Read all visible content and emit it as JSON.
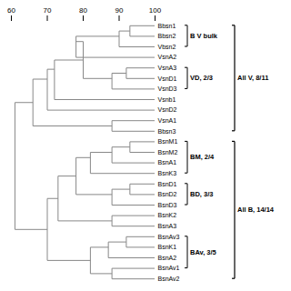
{
  "chart_data": {
    "type": "dendrogram",
    "categories": [
      "Bbsn1",
      "Bbsn2",
      "Vbsn2",
      "VsnA2",
      "VsnA3",
      "VsnD1",
      "VsnD3",
      "Vsnb1",
      "VsnD2",
      "VsnA1",
      "Bbsn3",
      "BsnM1",
      "BsnM2",
      "BsnA1",
      "BsnK3",
      "BsnD1",
      "BsnD2",
      "BsnD3",
      "BsnK2",
      "BsnA3",
      "BsnAv3",
      "BsnK1",
      "BsnA2",
      "BsnAv1",
      "BsnAv2"
    ],
    "color": "#888888",
    "xlim": [
      60,
      100
    ],
    "xticks": [
      60,
      70,
      80,
      90,
      100
    ],
    "nodes": [
      {
        "id": 25,
        "left": 0,
        "right": 1,
        "x": 93,
        "y": 0.5
      },
      {
        "id": 26,
        "left": 25,
        "right": 2,
        "x": 90,
        "y": 1.0
      },
      {
        "id": 27,
        "left": 26,
        "right": 3,
        "x": 78,
        "y": 1.5
      },
      {
        "id": 28,
        "left": 4,
        "right": 5,
        "x": 92,
        "y": 4.5
      },
      {
        "id": 29,
        "left": 28,
        "right": 6,
        "x": 88,
        "y": 5.0
      },
      {
        "id": 30,
        "left": 27,
        "right": 29,
        "x": 80,
        "y": 3.25
      },
      {
        "id": 31,
        "left": 30,
        "right": 7,
        "x": 72,
        "y": 4.125
      },
      {
        "id": 32,
        "left": 31,
        "right": 8,
        "x": 70,
        "y": 5.0625
      },
      {
        "id": 33,
        "left": 9,
        "right": 10,
        "x": 88,
        "y": 9.5
      },
      {
        "id": 34,
        "left": 32,
        "right": 33,
        "x": 66,
        "y": 7.28
      },
      {
        "id": 35,
        "left": 11,
        "right": 12,
        "x": 93,
        "y": 11.5
      },
      {
        "id": 36,
        "left": 35,
        "right": 13,
        "x": 88,
        "y": 12.0
      },
      {
        "id": 37,
        "left": 36,
        "right": 14,
        "x": 82,
        "y": 12.5
      },
      {
        "id": 38,
        "left": 15,
        "right": 16,
        "x": 93,
        "y": 15.5
      },
      {
        "id": 39,
        "left": 38,
        "right": 17,
        "x": 88,
        "y": 16.0
      },
      {
        "id": 40,
        "left": 37,
        "right": 39,
        "x": 78,
        "y": 14.25
      },
      {
        "id": 41,
        "left": 18,
        "right": 19,
        "x": 88,
        "y": 18.5
      },
      {
        "id": 42,
        "left": 40,
        "right": 41,
        "x": 73,
        "y": 16.375
      },
      {
        "id": 43,
        "left": 20,
        "right": 21,
        "x": 92,
        "y": 20.5
      },
      {
        "id": 44,
        "left": 43,
        "right": 22,
        "x": 87,
        "y": 21.0
      },
      {
        "id": 45,
        "left": 23,
        "right": 24,
        "x": 88,
        "y": 23.5
      },
      {
        "id": 46,
        "left": 44,
        "right": 45,
        "x": 82,
        "y": 22.25
      },
      {
        "id": 47,
        "left": 42,
        "right": 46,
        "x": 70,
        "y": 19.3125
      },
      {
        "id": 48,
        "left": 34,
        "right": 47,
        "x": 61,
        "y": 13.3
      }
    ],
    "groups_small": [
      {
        "label": "B V bulk",
        "y0": 0,
        "y1": 2
      },
      {
        "label": "VD, 2/3",
        "y0": 4,
        "y1": 6
      },
      {
        "label": "BM, 2/4",
        "y0": 11,
        "y1": 14
      },
      {
        "label": "BD, 3/3",
        "y0": 15,
        "y1": 17
      },
      {
        "label": "BAv, 3/5",
        "y0": 20,
        "y1": 23
      }
    ],
    "groups_big": [
      {
        "label": "All V, 8/11",
        "y0": 0,
        "y1": 10
      },
      {
        "label": "All B, 14/14",
        "y0": 11,
        "y1": 24
      }
    ]
  }
}
